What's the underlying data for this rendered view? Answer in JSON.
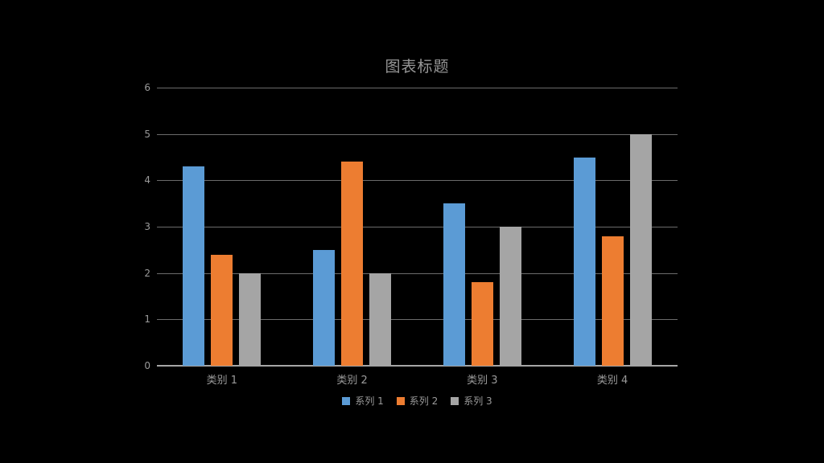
{
  "page": {
    "background_color": "#000000"
  },
  "chart_data": {
    "type": "bar",
    "title": "图表标题",
    "categories": [
      "类别 1",
      "类别 2",
      "类别 3",
      "类别 4"
    ],
    "series": [
      {
        "name": "系列 1",
        "color": "#5B9BD5",
        "values": [
          4.3,
          2.5,
          3.5,
          4.5
        ]
      },
      {
        "name": "系列 2",
        "color": "#ED7D31",
        "values": [
          2.4,
          4.4,
          1.8,
          2.8
        ]
      },
      {
        "name": "系列 3",
        "color": "#A5A5A5",
        "values": [
          2.0,
          2.0,
          3.0,
          5.0
        ]
      }
    ],
    "xlabel": "",
    "ylabel": "",
    "ylim": [
      0,
      6
    ],
    "yticks": [
      0,
      1,
      2,
      3,
      4,
      5,
      6
    ],
    "grid": true,
    "legend_position": "bottom",
    "style": {
      "title_color": "#969696",
      "axis_text_color": "#9A9A9A",
      "gridline_color": "#6B6B6B",
      "axis_line_color": "#A6A6A6"
    }
  }
}
